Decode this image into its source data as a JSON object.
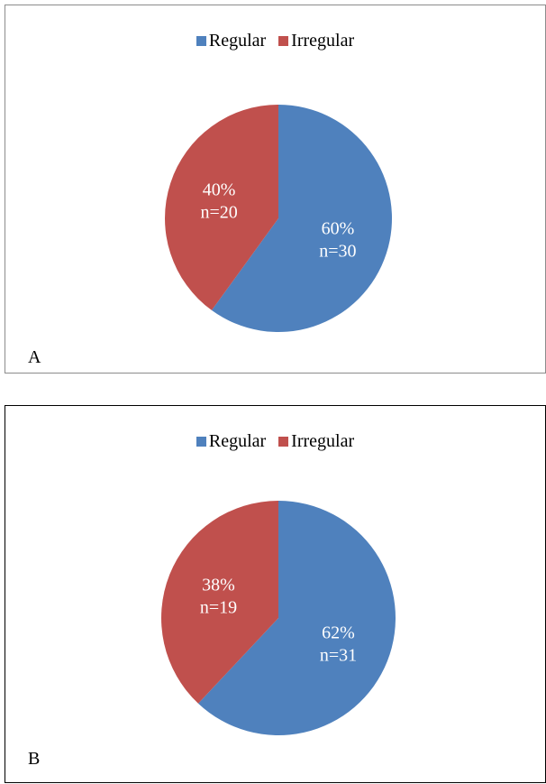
{
  "colors": {
    "regular": "#4F81BD",
    "irregular": "#C0504D",
    "label_text": "#FFFFFF"
  },
  "chart_data": [
    {
      "type": "pie",
      "panel_label": "A",
      "legend": [
        "Regular",
        "Irregular"
      ],
      "legend_placement": "top",
      "slices": [
        {
          "label": "Regular",
          "percent": 60,
          "n": 30,
          "pct_label": "60%",
          "n_label": "n=30"
        },
        {
          "label": "Irregular",
          "percent": 40,
          "n": 20,
          "pct_label": "40%",
          "n_label": "n=20"
        }
      ]
    },
    {
      "type": "pie",
      "panel_label": "B",
      "legend": [
        "Regular",
        "Irregular"
      ],
      "legend_placement": "top",
      "slices": [
        {
          "label": "Regular",
          "percent": 62,
          "n": 31,
          "pct_label": "62%",
          "n_label": "n=31"
        },
        {
          "label": "Irregular",
          "percent": 38,
          "n": 19,
          "pct_label": "38%",
          "n_label": "n=19"
        }
      ]
    }
  ]
}
